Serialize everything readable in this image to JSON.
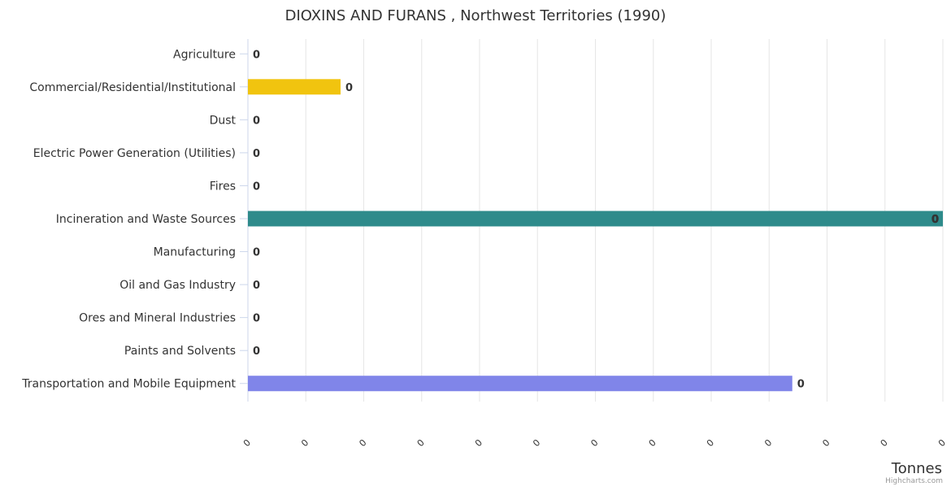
{
  "chart_data": {
    "type": "bar",
    "orientation": "horizontal",
    "title": "DIOXINS AND FURANS , Northwest Territories (1990)",
    "xlabel": "",
    "ylabel": "Tonnes",
    "categories": [
      "Agriculture",
      "Commercial/Residential/Institutional",
      "Dust",
      "Electric Power Generation (Utilities)",
      "Fires",
      "Incineration and Waste Sources",
      "Manufacturing",
      "Oil and Gas Industry",
      "Ores and Mineral Industries",
      "Paints and Solvents",
      "Transportation and Mobile Equipment"
    ],
    "values": [
      0,
      1.6e-06,
      0,
      0,
      0,
      1.2e-05,
      0,
      0,
      0,
      0,
      9.4e-06
    ],
    "data_labels": [
      "0",
      "0",
      "0",
      "0",
      "0",
      "0",
      "0",
      "0",
      "0",
      "0",
      "0"
    ],
    "bar_colors": [
      "#e8a838",
      "#f1c40f",
      "#5dade2",
      "#a569bd",
      "#e74c3c",
      "#2e8b8b",
      "#48c9b0",
      "#f39c12",
      "#7f8c8d",
      "#d35400",
      "#8085e9"
    ],
    "xlim": [
      0,
      1.2e-05
    ],
    "tick_count": 13,
    "tick_labels": [
      "0",
      "0",
      "0",
      "0",
      "0",
      "0",
      "0",
      "0",
      "0",
      "0",
      "0",
      "0",
      "0"
    ],
    "grid": true,
    "legend": "none"
  },
  "credits": "Highcharts.com"
}
